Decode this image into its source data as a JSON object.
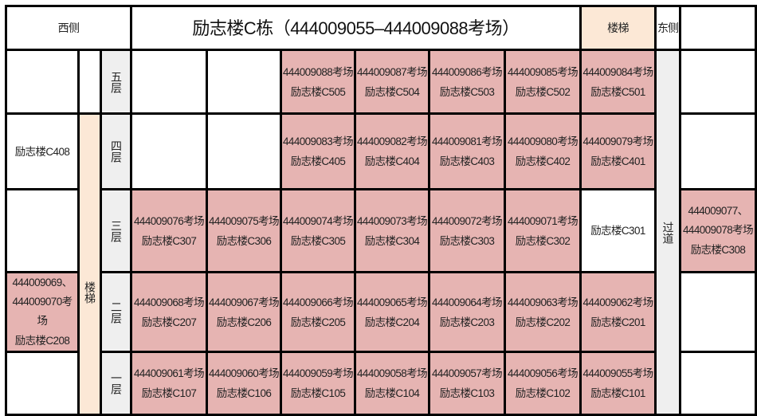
{
  "header": {
    "west_label": "西侧",
    "title": "励志楼C栋（444009055–444009088考场）",
    "stairs_label": "楼梯",
    "east_label": "东侧"
  },
  "left_stairs_label": "楼梯",
  "corridor_label": "过道",
  "colors": {
    "exam_room": "#e6b4b2",
    "stairs": "#fce8d6",
    "label_column": "#efefef"
  },
  "floors": [
    {
      "label": "五层",
      "west": null,
      "east": null,
      "rooms": [
        null,
        null,
        {
          "exam": "444009088考场",
          "room": "励志楼C505"
        },
        {
          "exam": "444009087考场",
          "room": "励志楼C504"
        },
        {
          "exam": "444009086考场",
          "room": "励志楼C503"
        },
        {
          "exam": "444009085考场",
          "room": "励志楼C502"
        },
        {
          "exam": "444009084考场",
          "room": "励志楼C501"
        }
      ]
    },
    {
      "label": "四层",
      "west": {
        "room": "励志楼C408"
      },
      "east": null,
      "rooms": [
        null,
        null,
        {
          "exam": "444009083考场",
          "room": "励志楼C405"
        },
        {
          "exam": "444009082考场",
          "room": "励志楼C404"
        },
        {
          "exam": "444009081考场",
          "room": "励志楼C403"
        },
        {
          "exam": "444009080考场",
          "room": "励志楼C402"
        },
        {
          "exam": "444009079考场",
          "room": "励志楼C401"
        }
      ]
    },
    {
      "label": "三层",
      "west": null,
      "east": {
        "exam": "444009077、444009078考场",
        "room": "励志楼C308"
      },
      "rooms": [
        {
          "exam": "444009076考场",
          "room": "励志楼C307"
        },
        {
          "exam": "444009075考场",
          "room": "励志楼C306"
        },
        {
          "exam": "444009074考场",
          "room": "励志楼C305"
        },
        {
          "exam": "444009073考场",
          "room": "励志楼C304"
        },
        {
          "exam": "444009072考场",
          "room": "励志楼C303"
        },
        {
          "exam": "444009071考场",
          "room": "励志楼C302"
        },
        {
          "room": "励志楼C301"
        }
      ]
    },
    {
      "label": "二层",
      "west": {
        "exam": "444009069、444009070考场",
        "room": "励志楼C208"
      },
      "east": null,
      "rooms": [
        {
          "exam": "444009068考场",
          "room": "励志楼C207"
        },
        {
          "exam": "444009067考场",
          "room": "励志楼C206"
        },
        {
          "exam": "444009066考场",
          "room": "励志楼C205"
        },
        {
          "exam": "444009065考场",
          "room": "励志楼C204"
        },
        {
          "exam": "444009064考场",
          "room": "励志楼C203"
        },
        {
          "exam": "444009063考场",
          "room": "励志楼C202"
        },
        {
          "exam": "444009062考场",
          "room": "励志楼C201"
        }
      ]
    },
    {
      "label": "一层",
      "west": null,
      "east": null,
      "rooms": [
        {
          "exam": "444009061考场",
          "room": "励志楼C107"
        },
        {
          "exam": "444009060考场",
          "room": "励志楼C106"
        },
        {
          "exam": "444009059考场",
          "room": "励志楼C105"
        },
        {
          "exam": "444009058考场",
          "room": "励志楼C104"
        },
        {
          "exam": "444009057考场",
          "room": "励志楼C103"
        },
        {
          "exam": "444009056考场",
          "room": "励志楼C102"
        },
        {
          "exam": "444009055考场",
          "room": "励志楼C101"
        }
      ]
    }
  ]
}
